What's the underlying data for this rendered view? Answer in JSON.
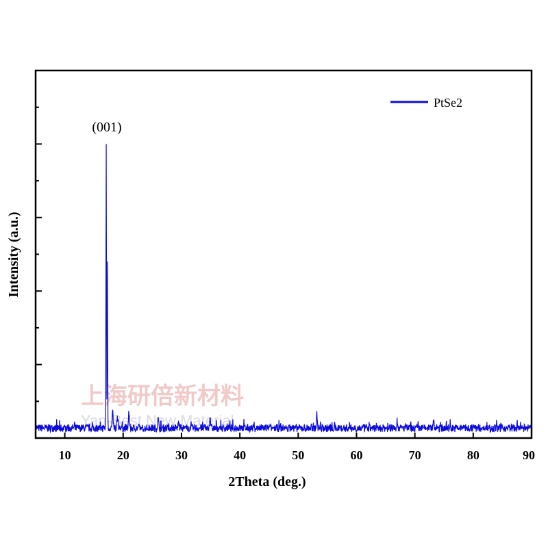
{
  "chart_data": {
    "type": "line",
    "title": "",
    "xlabel": "2Theta (deg.)",
    "ylabel": "Intensity (a.u.)",
    "xlim": [
      5,
      90
    ],
    "ylim": [
      0,
      100
    ],
    "x_ticks": [
      10,
      20,
      30,
      40,
      50,
      60,
      70,
      80,
      90
    ],
    "y_ticks_labeled": false,
    "grid": false,
    "legend": {
      "position": "top-right"
    },
    "series": [
      {
        "name": "PtSe2",
        "color": "#0a0adc",
        "peaks": [
          {
            "x": 17.1,
            "y": 100
          },
          {
            "x": 17.3,
            "y": 60
          },
          {
            "x": 18.2,
            "y": 8
          },
          {
            "x": 19.0,
            "y": 7
          },
          {
            "x": 21.0,
            "y": 7
          },
          {
            "x": 26.0,
            "y": 6
          },
          {
            "x": 29.5,
            "y": 5
          },
          {
            "x": 34.9,
            "y": 7
          },
          {
            "x": 53.2,
            "y": 7.5
          },
          {
            "x": 67.0,
            "y": 5
          },
          {
            "x": 73.2,
            "y": 5
          }
        ],
        "baseline": 3
      }
    ],
    "annotations": [
      {
        "text": "(001)",
        "x": 17.1,
        "y": 100
      }
    ]
  },
  "watermark": {
    "line1": "上海研倍新材料",
    "line2": "Yan-Best New Material"
  }
}
